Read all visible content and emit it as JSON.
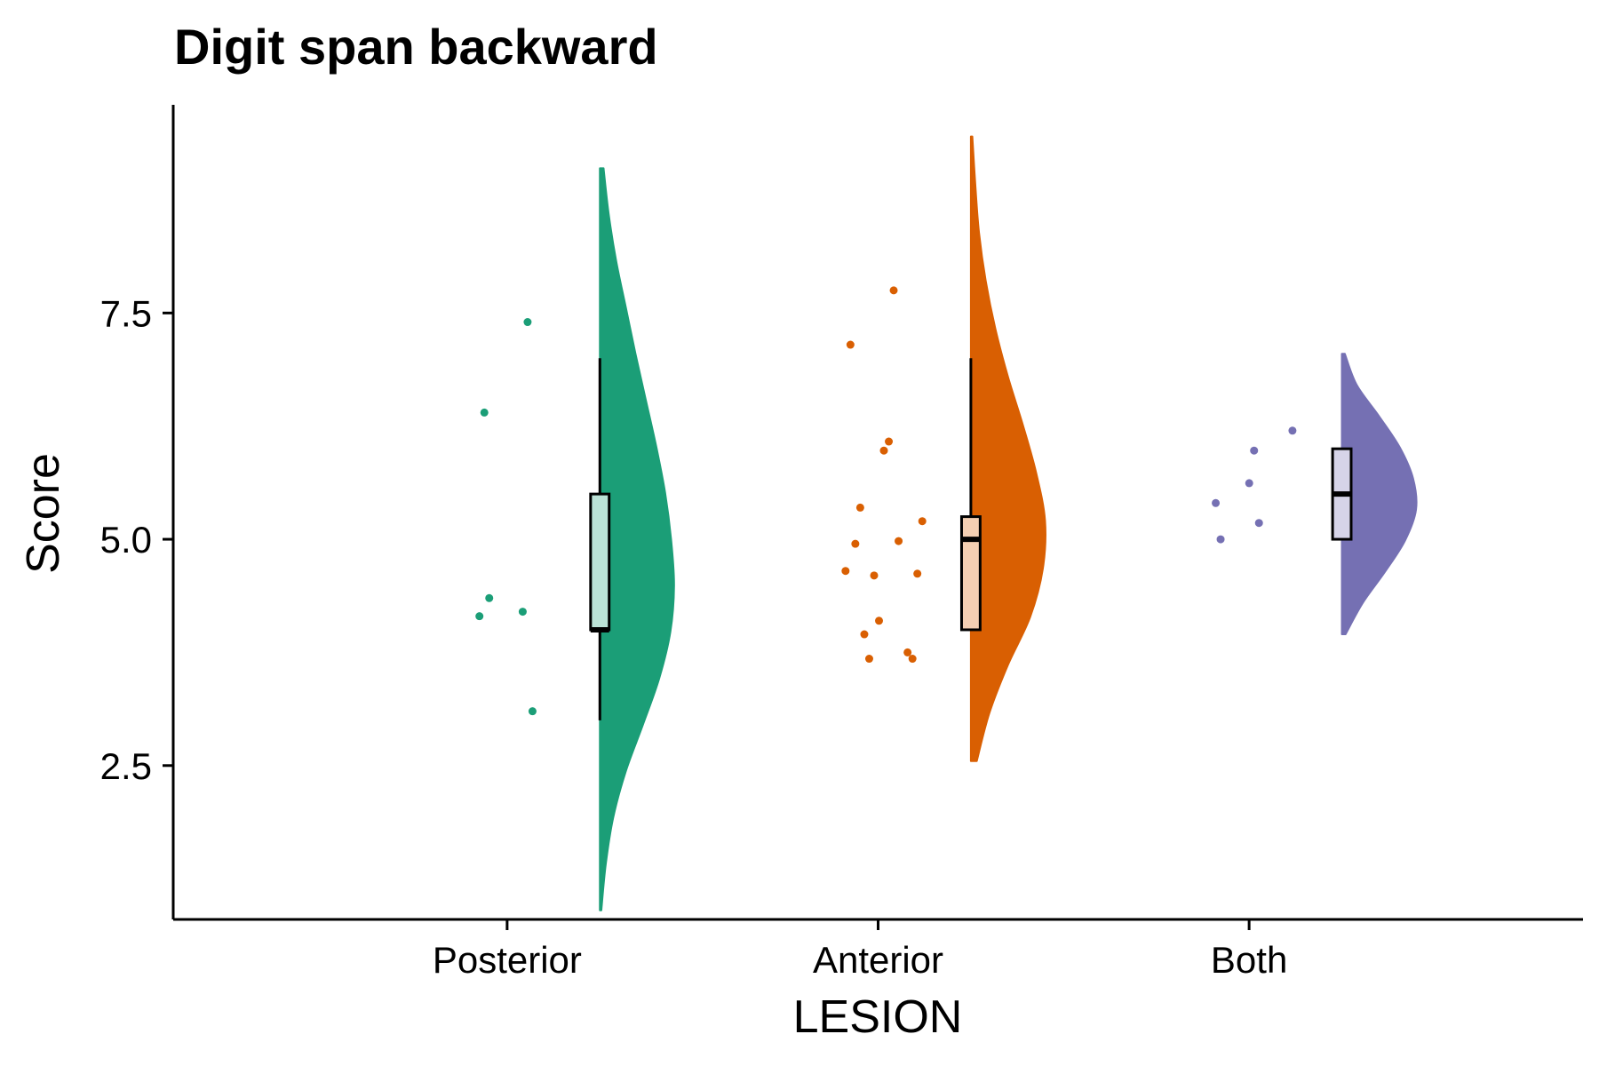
{
  "chart_data": {
    "type": "raincloud",
    "title": "Digit span backward",
    "xlabel": "LESION",
    "ylabel": "Score",
    "categories": [
      "Posterior",
      "Anterior",
      "Both"
    ],
    "ylim": [
      0.8,
      9.8
    ],
    "yticks": [
      "2.5",
      "5.0",
      "7.5"
    ],
    "grid": false,
    "legend": "none",
    "colors": {
      "Posterior": "#1b9e77",
      "Anterior": "#d95f02",
      "Both": "#7570b3"
    },
    "groups": [
      {
        "name": "Posterior",
        "points": [
          4.15,
          4.2,
          6.4,
          7.4,
          4.35,
          3.1
        ],
        "box": {
          "min": 3.0,
          "q1": 4.0,
          "median": 4.0,
          "q3": 5.5,
          "max": 7.0
        },
        "density": {
          "ymin": 0.9,
          "ymax": 9.1,
          "width": [
            0.02,
            0.08,
            0.18,
            0.35,
            0.58,
            0.8,
            0.95,
            1.0,
            0.96,
            0.88,
            0.76,
            0.62,
            0.48,
            0.35,
            0.22,
            0.12,
            0.05
          ]
        }
      },
      {
        "name": "Anterior",
        "points": [
          3.95,
          3.75,
          3.68,
          3.68,
          4.6,
          4.62,
          4.1,
          5.2,
          5.98,
          4.65,
          6.08,
          7.15,
          7.75,
          4.95,
          4.98,
          5.35
        ],
        "box": {
          "min": 4.0,
          "q1": 4.0,
          "median": 5.0,
          "q3": 5.25,
          "max": 7.0
        },
        "density": {
          "ymin": 2.55,
          "ymax": 9.45,
          "width": [
            0.08,
            0.25,
            0.5,
            0.8,
            0.97,
            1.0,
            0.88,
            0.7,
            0.5,
            0.33,
            0.2,
            0.11,
            0.06,
            0.02
          ]
        }
      },
      {
        "name": "Both",
        "points": [
          5.62,
          6.2,
          5.98,
          5.4,
          5.18,
          5.0
        ],
        "box": {
          "min": 5.0,
          "q1": 5.0,
          "median": 5.5,
          "q3": 6.0,
          "max": 6.0
        },
        "density": {
          "ymin": 3.95,
          "ymax": 7.05,
          "width": [
            0.05,
            0.28,
            0.58,
            0.85,
            1.0,
            0.96,
            0.78,
            0.5,
            0.2,
            0.04
          ]
        }
      }
    ]
  }
}
